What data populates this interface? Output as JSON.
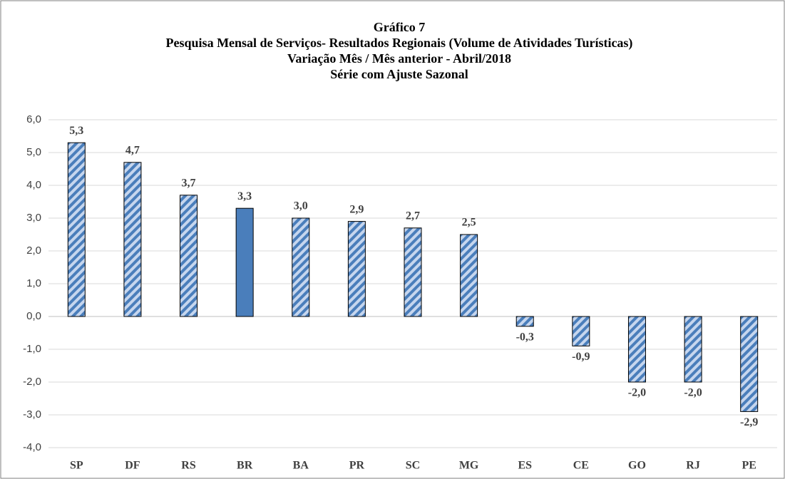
{
  "chart_data": {
    "type": "bar",
    "title": [
      "Gráfico 7",
      "Pesquisa Mensal de Serviços- Resultados Regionais (Volume de Atividades Turísticas)",
      "Variação Mês / Mês anterior - Abril/2018",
      "Série com Ajuste Sazonal"
    ],
    "categories": [
      "SP",
      "DF",
      "RS",
      "BR",
      "BA",
      "PR",
      "SC",
      "MG",
      "ES",
      "CE",
      "GO",
      "RJ",
      "PE"
    ],
    "values": [
      5.3,
      4.7,
      3.7,
      3.3,
      3.0,
      2.9,
      2.7,
      2.5,
      -0.3,
      -0.9,
      -2.0,
      -2.0,
      -2.9
    ],
    "value_labels": [
      "5,3",
      "4,7",
      "3,7",
      "3,3",
      "3,0",
      "2,9",
      "2,7",
      "2,5",
      "-0,3",
      "-0,9",
      "-2,0",
      "-2,0",
      "-2,9"
    ],
    "color": "#4a7ebb",
    "hatch_background": "#c6d6ee",
    "fill_styles": [
      "hatched",
      "hatched",
      "hatched",
      "solid",
      "hatched",
      "hatched",
      "hatched",
      "hatched",
      "hatched",
      "hatched",
      "hatched",
      "hatched",
      "hatched"
    ],
    "ylim": [
      -4,
      6
    ],
    "yticks": [
      {
        "value": -4,
        "label": "-4,0"
      },
      {
        "value": -3,
        "label": "-3,0"
      },
      {
        "value": -2,
        "label": "-2,0"
      },
      {
        "value": -1,
        "label": "-1,0"
      },
      {
        "value": 0,
        "label": "0,0"
      },
      {
        "value": 1,
        "label": "1,0"
      },
      {
        "value": 2,
        "label": "2,0"
      },
      {
        "value": 3,
        "label": "3,0"
      },
      {
        "value": 4,
        "label": "4,0"
      },
      {
        "value": 5,
        "label": "5,0"
      },
      {
        "value": 6,
        "label": "6,0"
      }
    ],
    "grid": true
  }
}
